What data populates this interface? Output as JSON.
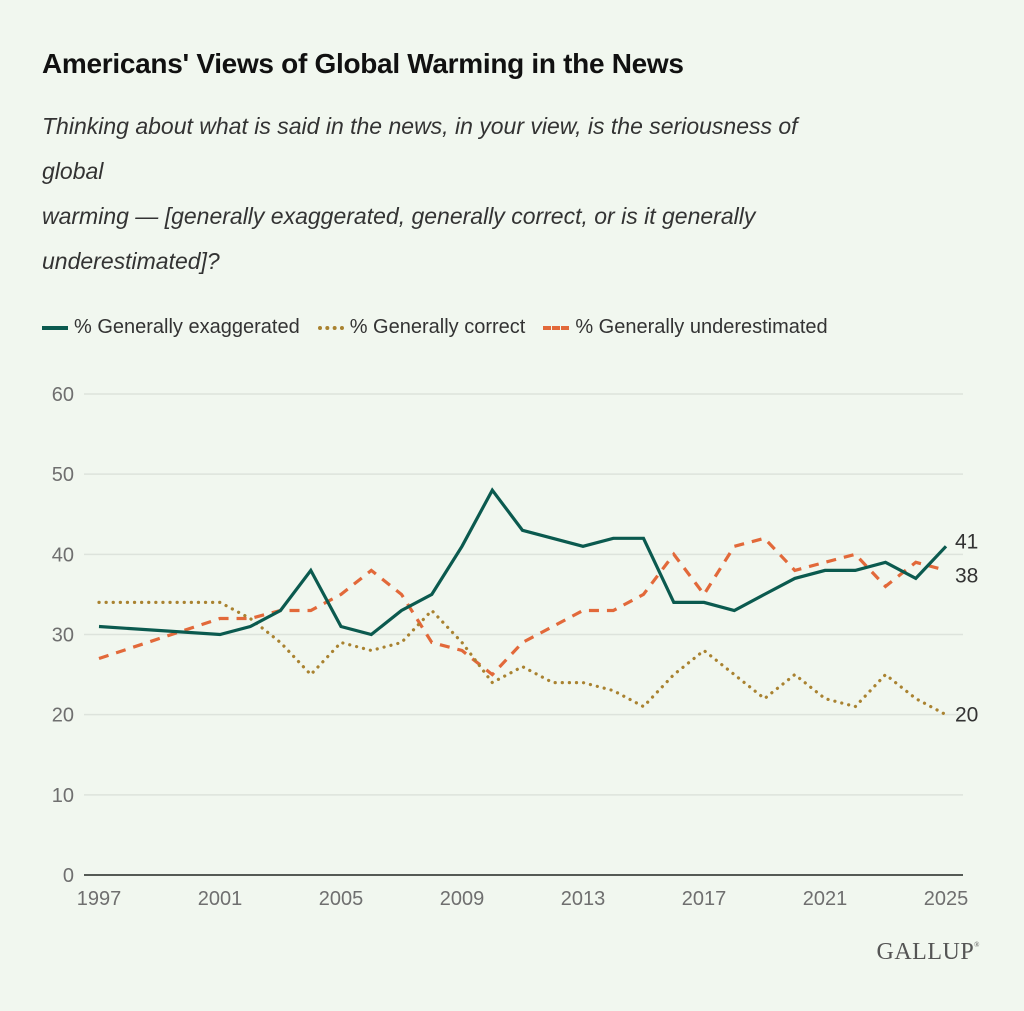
{
  "header": {
    "title": "Americans' Views of Global Warming in the News",
    "subtitle_lines": [
      "Thinking about what is said in the news, in your view, is the seriousness of",
      "global",
      "warming — [generally exaggerated, generally correct, or is it generally",
      "underestimated]?"
    ]
  },
  "legend": [
    {
      "label": "% Generally exaggerated",
      "style": "solid"
    },
    {
      "label": "% Generally correct",
      "style": "dotted"
    },
    {
      "label": "% Generally underestimated",
      "style": "dashed"
    }
  ],
  "logo": {
    "text": "GALLUP",
    "mark": "®"
  },
  "chart_data": {
    "type": "line",
    "title": "Americans' Views of Global Warming in the News",
    "xlabel": "",
    "ylabel": "",
    "ylim": [
      0,
      60
    ],
    "yticks": [
      0,
      10,
      20,
      30,
      40,
      50,
      60
    ],
    "xlim": [
      1997,
      2025
    ],
    "xticks": [
      1997,
      2001,
      2005,
      2009,
      2013,
      2017,
      2021,
      2025
    ],
    "grid": true,
    "legend_position": "top-left",
    "series": [
      {
        "name": "% Generally exaggerated",
        "color": "#0b5a4f",
        "style": "solid",
        "end_label": "41",
        "points": [
          [
            1997,
            31
          ],
          [
            2001,
            30
          ],
          [
            2002,
            31
          ],
          [
            2003,
            33
          ],
          [
            2004,
            38
          ],
          [
            2005,
            31
          ],
          [
            2006,
            30
          ],
          [
            2007,
            33
          ],
          [
            2008,
            35
          ],
          [
            2009,
            41
          ],
          [
            2010,
            48
          ],
          [
            2011,
            43
          ],
          [
            2013,
            41
          ],
          [
            2014,
            42
          ],
          [
            2015,
            42
          ],
          [
            2016,
            34
          ],
          [
            2017,
            34
          ],
          [
            2018,
            33
          ],
          [
            2019,
            35
          ],
          [
            2020,
            37
          ],
          [
            2021,
            38
          ],
          [
            2022,
            38
          ],
          [
            2023,
            39
          ],
          [
            2024,
            37
          ],
          [
            2025,
            41
          ]
        ]
      },
      {
        "name": "% Generally correct",
        "color": "#a98230",
        "style": "dotted",
        "end_label": "20",
        "points": [
          [
            1997,
            34
          ],
          [
            2001,
            34
          ],
          [
            2002,
            32
          ],
          [
            2003,
            29
          ],
          [
            2004,
            25
          ],
          [
            2005,
            29
          ],
          [
            2006,
            28
          ],
          [
            2007,
            29
          ],
          [
            2008,
            33
          ],
          [
            2009,
            29
          ],
          [
            2010,
            24
          ],
          [
            2011,
            26
          ],
          [
            2012,
            24
          ],
          [
            2013,
            24
          ],
          [
            2014,
            23
          ],
          [
            2015,
            21
          ],
          [
            2016,
            25
          ],
          [
            2017,
            28
          ],
          [
            2018,
            25
          ],
          [
            2019,
            22
          ],
          [
            2020,
            25
          ],
          [
            2021,
            22
          ],
          [
            2022,
            21
          ],
          [
            2023,
            25
          ],
          [
            2024,
            22
          ],
          [
            2025,
            20
          ]
        ]
      },
      {
        "name": "% Generally underestimated",
        "color": "#e2693a",
        "style": "dashed",
        "end_label": "38",
        "points": [
          [
            1997,
            27
          ],
          [
            2001,
            32
          ],
          [
            2002,
            32
          ],
          [
            2003,
            33
          ],
          [
            2004,
            33
          ],
          [
            2005,
            35
          ],
          [
            2006,
            38
          ],
          [
            2007,
            35
          ],
          [
            2008,
            29
          ],
          [
            2009,
            28
          ],
          [
            2010,
            25
          ],
          [
            2011,
            29
          ],
          [
            2012,
            31
          ],
          [
            2013,
            33
          ],
          [
            2014,
            33
          ],
          [
            2015,
            35
          ],
          [
            2016,
            40
          ],
          [
            2017,
            35
          ],
          [
            2018,
            41
          ],
          [
            2019,
            42
          ],
          [
            2020,
            38
          ],
          [
            2021,
            39
          ],
          [
            2022,
            40
          ],
          [
            2023,
            36
          ],
          [
            2024,
            39
          ],
          [
            2025,
            38
          ]
        ]
      }
    ]
  }
}
